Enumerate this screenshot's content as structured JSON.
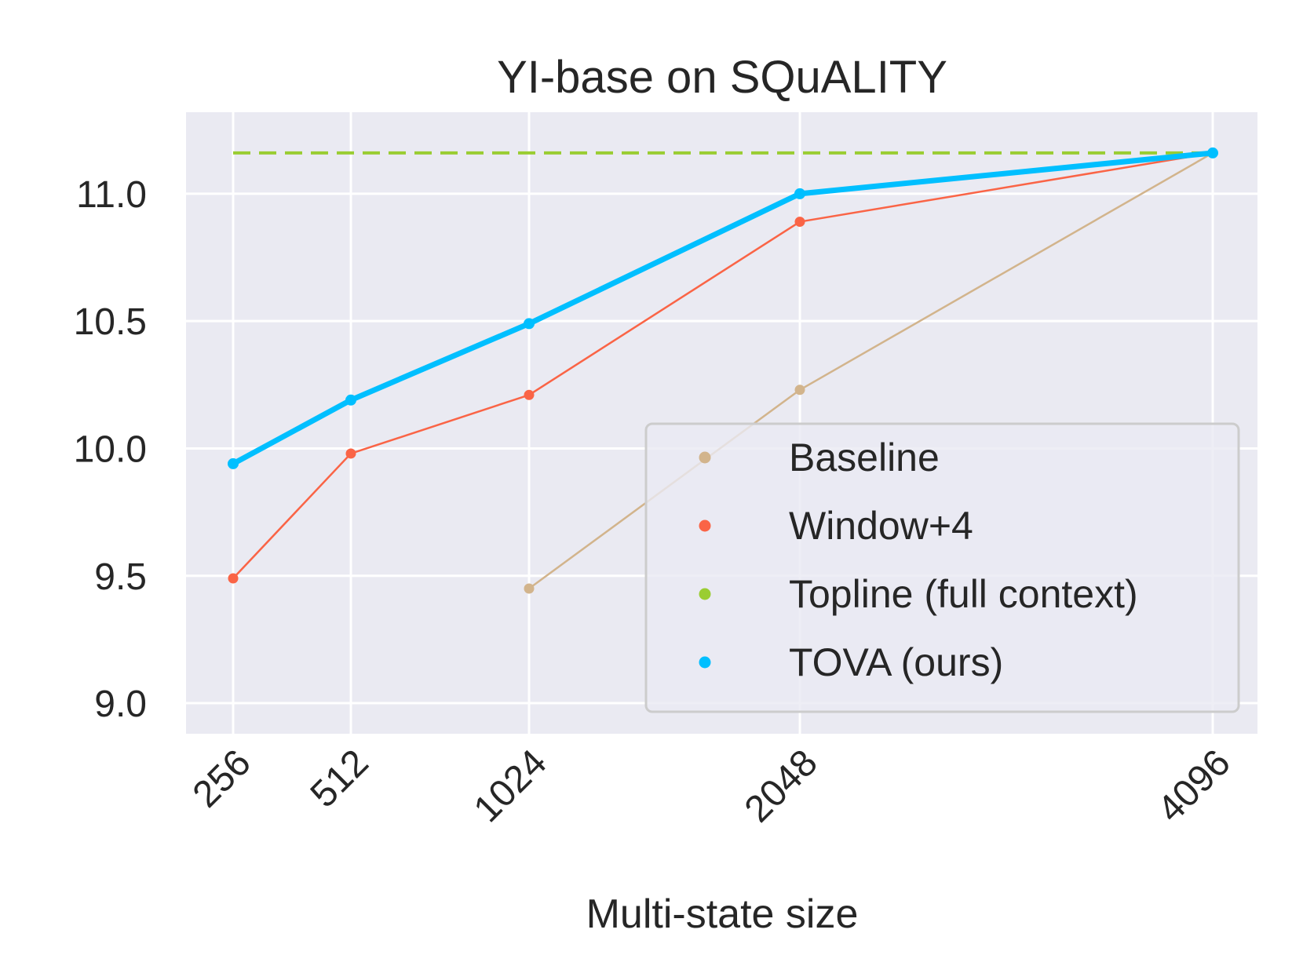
{
  "chart_data": {
    "type": "line",
    "title": "YI-base on SQuALITY",
    "xlabel": "Multi-state size",
    "ylabel": "",
    "x": [
      256,
      512,
      1024,
      2048,
      4096
    ],
    "x_tick_labels": [
      "256",
      "512",
      "1024",
      "2048",
      "4096"
    ],
    "y_ticks": [
      9.0,
      9.5,
      10.0,
      10.5,
      11.0
    ],
    "y_tick_labels": [
      "9.0",
      "9.5",
      "10.0",
      "10.5",
      "11.0"
    ],
    "ylim": [
      8.88,
      11.32
    ],
    "grid": true,
    "legend_position": "bottom-right",
    "series": [
      {
        "name": "Baseline",
        "color": "#d2b48c",
        "style": "solid",
        "width": "thin",
        "x": [
          1024,
          2048,
          4096
        ],
        "values": [
          9.45,
          10.23,
          11.16
        ]
      },
      {
        "name": "Window+4",
        "color": "#fa6446",
        "style": "solid",
        "width": "thin",
        "x": [
          256,
          512,
          1024,
          2048,
          4096
        ],
        "values": [
          9.49,
          9.98,
          10.21,
          10.89,
          11.16
        ]
      },
      {
        "name": "Topline (full context)",
        "color": "#9acd32",
        "style": "dashed",
        "width": "medium",
        "x": [
          256,
          4096
        ],
        "values": [
          11.16,
          11.16
        ]
      },
      {
        "name": "TOVA (ours)",
        "color": "#00bfff",
        "style": "solid",
        "width": "thick",
        "x": [
          256,
          512,
          1024,
          2048,
          4096
        ],
        "values": [
          9.94,
          10.19,
          10.49,
          11.0,
          11.16
        ]
      }
    ]
  }
}
